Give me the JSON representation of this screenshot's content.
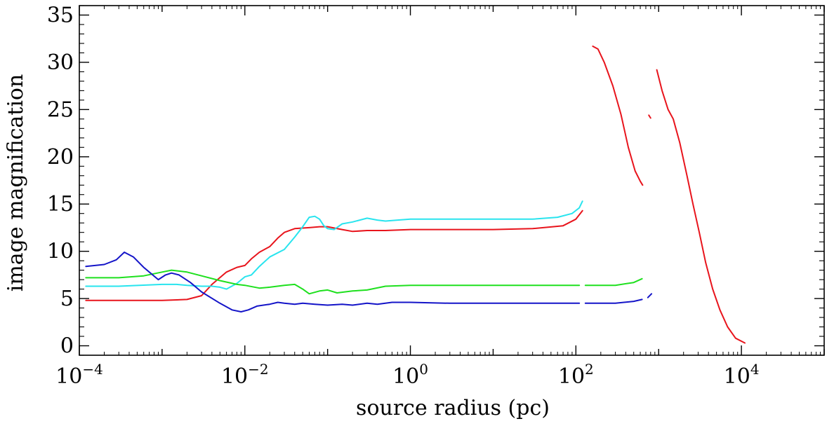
{
  "chart_data": {
    "type": "line",
    "xlabel": "source radius (pc)",
    "ylabel": "image magnification",
    "xscale": "log",
    "xlim": [
      0.0001,
      100000
    ],
    "ylim": [
      -1,
      36
    ],
    "grid": false,
    "legend": "none",
    "x_ticks": [
      {
        "base": "10",
        "exp": "−4",
        "value": 0.0001
      },
      {
        "base": "10",
        "exp": "−2",
        "value": 0.01
      },
      {
        "base": "10",
        "exp": "0",
        "value": 1
      },
      {
        "base": "10",
        "exp": "2",
        "value": 100
      },
      {
        "base": "10",
        "exp": "4",
        "value": 10000
      }
    ],
    "y_ticks": [
      "0",
      "5",
      "10",
      "15",
      "20",
      "25",
      "30",
      "35"
    ],
    "colors": {
      "red": "#e8141c",
      "cyan": "#28e4ee",
      "green": "#1ee01e",
      "blue": "#1414c8"
    },
    "series": [
      {
        "color": "#e8141c",
        "points": [
          [
            0.00012,
            4.8
          ],
          [
            0.0003,
            4.8
          ],
          [
            0.001,
            4.8
          ],
          [
            0.002,
            4.9
          ],
          [
            0.003,
            5.3
          ],
          [
            0.004,
            6.5
          ],
          [
            0.006,
            7.8
          ],
          [
            0.008,
            8.3
          ],
          [
            0.01,
            8.5
          ],
          [
            0.012,
            9.2
          ],
          [
            0.015,
            9.9
          ],
          [
            0.02,
            10.5
          ],
          [
            0.025,
            11.4
          ],
          [
            0.03,
            12.0
          ],
          [
            0.04,
            12.4
          ],
          [
            0.06,
            12.5
          ],
          [
            0.08,
            12.6
          ],
          [
            0.1,
            12.6
          ],
          [
            0.15,
            12.3
          ],
          [
            0.2,
            12.1
          ],
          [
            0.3,
            12.2
          ],
          [
            0.5,
            12.2
          ],
          [
            1,
            12.3
          ],
          [
            3,
            12.3
          ],
          [
            10,
            12.3
          ],
          [
            30,
            12.4
          ],
          [
            70,
            12.7
          ],
          [
            100,
            13.4
          ],
          [
            120,
            14.3
          ]
        ]
      },
      {
        "color": "#e8141c",
        "points": [
          [
            160,
            31.7
          ],
          [
            185,
            31.4
          ],
          [
            220,
            30
          ],
          [
            280,
            27.5
          ],
          [
            350,
            24.5
          ],
          [
            430,
            21
          ],
          [
            520,
            18.5
          ],
          [
            600,
            17.4
          ],
          [
            640,
            17
          ]
        ]
      },
      {
        "color": "#e8141c",
        "points": [
          [
            760,
            24.4
          ],
          [
            800,
            24.1
          ]
        ]
      },
      {
        "color": "#e8141c",
        "points": [
          [
            950,
            29.2
          ],
          [
            1100,
            27
          ],
          [
            1300,
            25
          ],
          [
            1500,
            24
          ],
          [
            1800,
            21.5
          ],
          [
            2200,
            18
          ],
          [
            2600,
            15
          ],
          [
            3100,
            12
          ],
          [
            3700,
            8.8
          ],
          [
            4500,
            6
          ],
          [
            5500,
            3.8
          ],
          [
            6800,
            2
          ],
          [
            8500,
            0.8
          ],
          [
            11000,
            0.3
          ]
        ]
      },
      {
        "color": "#28e4ee",
        "points": [
          [
            0.00012,
            6.3
          ],
          [
            0.0003,
            6.3
          ],
          [
            0.001,
            6.5
          ],
          [
            0.0015,
            6.5
          ],
          [
            0.002,
            6.4
          ],
          [
            0.003,
            6.3
          ],
          [
            0.004,
            6.3
          ],
          [
            0.005,
            6.2
          ],
          [
            0.006,
            6.0
          ],
          [
            0.008,
            6.6
          ],
          [
            0.01,
            7.3
          ],
          [
            0.012,
            7.5
          ],
          [
            0.015,
            8.4
          ],
          [
            0.02,
            9.4
          ],
          [
            0.03,
            10.2
          ],
          [
            0.04,
            11.5
          ],
          [
            0.05,
            12.6
          ],
          [
            0.06,
            13.6
          ],
          [
            0.07,
            13.7
          ],
          [
            0.08,
            13.4
          ],
          [
            0.09,
            12.7
          ],
          [
            0.1,
            12.4
          ],
          [
            0.12,
            12.3
          ],
          [
            0.15,
            12.9
          ],
          [
            0.2,
            13.1
          ],
          [
            0.3,
            13.5
          ],
          [
            0.4,
            13.3
          ],
          [
            0.5,
            13.2
          ],
          [
            0.7,
            13.3
          ],
          [
            1,
            13.4
          ],
          [
            3,
            13.4
          ],
          [
            10,
            13.4
          ],
          [
            30,
            13.4
          ],
          [
            60,
            13.6
          ],
          [
            90,
            14.0
          ],
          [
            110,
            14.6
          ],
          [
            120,
            15.3
          ]
        ]
      },
      {
        "color": "#1ee01e",
        "points": [
          [
            0.00012,
            7.2
          ],
          [
            0.0003,
            7.2
          ],
          [
            0.0006,
            7.4
          ],
          [
            0.001,
            7.8
          ],
          [
            0.0013,
            8.0
          ],
          [
            0.002,
            7.8
          ],
          [
            0.003,
            7.4
          ],
          [
            0.005,
            6.9
          ],
          [
            0.008,
            6.5
          ],
          [
            0.01,
            6.4
          ],
          [
            0.015,
            6.1
          ],
          [
            0.02,
            6.2
          ],
          [
            0.03,
            6.4
          ],
          [
            0.04,
            6.5
          ],
          [
            0.05,
            6.0
          ],
          [
            0.06,
            5.5
          ],
          [
            0.08,
            5.8
          ],
          [
            0.1,
            5.9
          ],
          [
            0.13,
            5.6
          ],
          [
            0.2,
            5.8
          ],
          [
            0.3,
            5.9
          ],
          [
            0.5,
            6.3
          ],
          [
            1,
            6.4
          ],
          [
            10,
            6.4
          ],
          [
            100,
            6.4
          ],
          [
            110,
            6.4
          ]
        ]
      },
      {
        "color": "#1ee01e",
        "points": [
          [
            130,
            6.4
          ],
          [
            300,
            6.4
          ],
          [
            500,
            6.7
          ],
          [
            630,
            7.1
          ]
        ]
      },
      {
        "color": "#1414c8",
        "points": [
          [
            0.00012,
            8.4
          ],
          [
            0.0002,
            8.6
          ],
          [
            0.00028,
            9.1
          ],
          [
            0.00035,
            9.9
          ],
          [
            0.00045,
            9.4
          ],
          [
            0.0006,
            8.3
          ],
          [
            0.0009,
            7.0
          ],
          [
            0.0011,
            7.5
          ],
          [
            0.0013,
            7.7
          ],
          [
            0.0016,
            7.5
          ],
          [
            0.0022,
            6.7
          ],
          [
            0.003,
            5.7
          ],
          [
            0.005,
            4.5
          ],
          [
            0.007,
            3.8
          ],
          [
            0.009,
            3.6
          ],
          [
            0.011,
            3.8
          ],
          [
            0.014,
            4.2
          ],
          [
            0.02,
            4.4
          ],
          [
            0.025,
            4.6
          ],
          [
            0.03,
            4.5
          ],
          [
            0.04,
            4.4
          ],
          [
            0.05,
            4.5
          ],
          [
            0.07,
            4.4
          ],
          [
            0.1,
            4.3
          ],
          [
            0.15,
            4.4
          ],
          [
            0.2,
            4.3
          ],
          [
            0.3,
            4.5
          ],
          [
            0.4,
            4.4
          ],
          [
            0.6,
            4.6
          ],
          [
            1,
            4.6
          ],
          [
            3,
            4.5
          ],
          [
            10,
            4.5
          ],
          [
            100,
            4.5
          ],
          [
            110,
            4.5
          ]
        ]
      },
      {
        "color": "#1414c8",
        "points": [
          [
            130,
            4.5
          ],
          [
            300,
            4.5
          ],
          [
            500,
            4.7
          ],
          [
            630,
            4.9
          ]
        ]
      },
      {
        "color": "#1414c8",
        "points": [
          [
            740,
            5.1
          ],
          [
            820,
            5.5
          ]
        ]
      }
    ]
  }
}
